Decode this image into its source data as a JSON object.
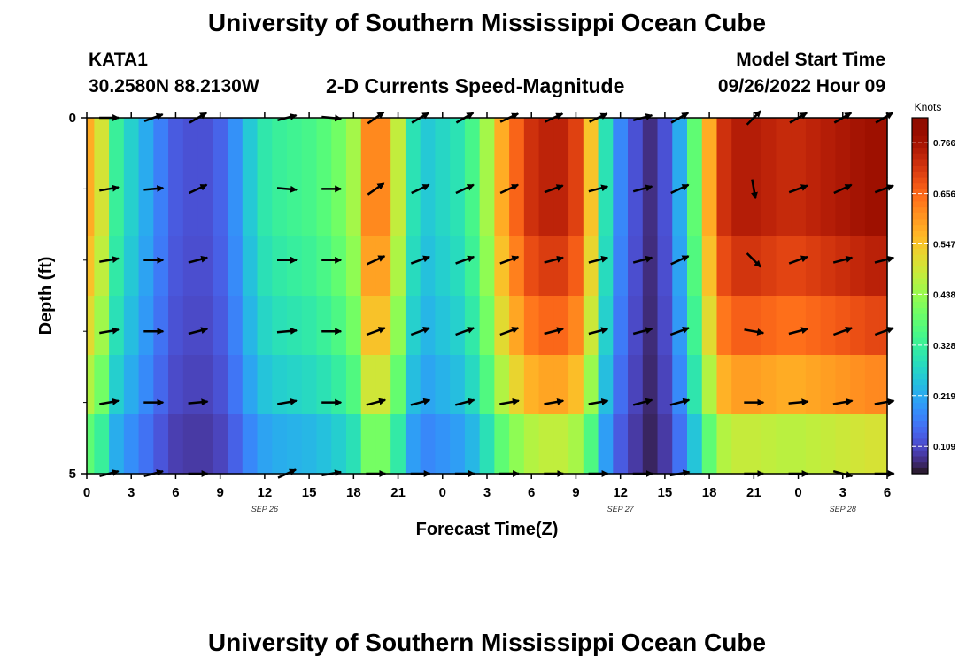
{
  "page": {
    "title": "University of Southern Mississippi Ocean Cube",
    "station": "KATA1",
    "coords": "30.2580N  88.2130W",
    "plot_title": "2-D Currents Speed-Magnitude",
    "model_start_label": "Model Start Time",
    "model_start_value": "09/26/2022 Hour 09",
    "footer_title": "University of Southern Mississippi Ocean Cube"
  },
  "chart_data": {
    "type": "heatmap",
    "title": "2-D Currents Speed-Magnitude",
    "xlabel": "Forecast Time(Z)",
    "ylabel": "Depth (ft)",
    "x_range_hours": [
      0,
      54
    ],
    "y_range": [
      0,
      5
    ],
    "y_ticks": [
      "0",
      "5"
    ],
    "x_tick_hours": [
      0,
      3,
      6,
      9,
      12,
      15,
      18,
      21,
      24,
      27,
      30,
      33,
      36,
      39,
      42,
      45,
      48,
      51,
      54
    ],
    "x_tick_labels": [
      "0",
      "3",
      "6",
      "9",
      "12",
      "15",
      "18",
      "21",
      "0",
      "3",
      "6",
      "9",
      "12",
      "15",
      "18",
      "21",
      "0",
      "3",
      "6"
    ],
    "date_labels": [
      {
        "hour": 12,
        "text": "SEP 26"
      },
      {
        "hour": 36,
        "text": "SEP 27"
      },
      {
        "hour": 51,
        "text": "SEP 28"
      }
    ],
    "colorbar": {
      "unit": "Knots",
      "min": 0.05,
      "max": 0.82,
      "ticks": [
        0.109,
        0.219,
        0.328,
        0.438,
        0.547,
        0.656,
        0.766
      ],
      "tick_labels": [
        "0.109",
        "0.219",
        "0.328",
        "0.438",
        "0.547",
        "0.656",
        "0.766"
      ]
    },
    "speed_profile_hours": [
      0,
      1,
      2,
      3,
      4,
      5,
      6,
      7,
      8,
      9,
      10,
      11,
      12,
      13,
      14,
      15,
      16,
      17,
      18,
      19,
      20,
      21,
      22,
      23,
      24,
      25,
      26,
      27,
      28,
      29,
      30,
      31,
      32,
      33,
      34,
      35,
      36,
      37,
      38,
      39,
      40,
      41,
      42,
      43,
      44,
      45,
      46,
      47,
      48,
      49,
      50,
      51,
      52,
      53,
      54
    ],
    "speed_profile_knots": [
      0.58,
      0.5,
      0.33,
      0.27,
      0.22,
      0.17,
      0.13,
      0.12,
      0.12,
      0.14,
      0.19,
      0.26,
      0.31,
      0.33,
      0.34,
      0.35,
      0.37,
      0.4,
      0.45,
      0.62,
      0.62,
      0.48,
      0.3,
      0.26,
      0.28,
      0.3,
      0.35,
      0.45,
      0.58,
      0.66,
      0.72,
      0.74,
      0.74,
      0.7,
      0.55,
      0.3,
      0.18,
      0.12,
      0.08,
      0.12,
      0.22,
      0.38,
      0.58,
      0.72,
      0.75,
      0.75,
      0.74,
      0.73,
      0.73,
      0.74,
      0.75,
      0.76,
      0.77,
      0.78,
      0.78
    ],
    "depth_levels_factor": [
      1.0,
      1.0,
      0.95,
      0.88,
      0.78,
      0.62
    ],
    "vector_rows_depth": [
      0,
      1,
      2,
      3,
      4,
      5
    ],
    "vector_cols_hours": [
      1.5,
      4.5,
      7.5,
      13.5,
      16.5,
      19.5,
      22.5,
      25.5,
      28.5,
      31.5,
      34.5,
      37.5,
      40,
      45,
      48,
      51,
      53.8
    ],
    "vector_angles_deg": [
      [
        0,
        -20,
        -30,
        -15,
        5,
        -35,
        -30,
        -30,
        -25,
        -25,
        -25,
        -15,
        -30,
        -45,
        -30,
        -30,
        -30
      ],
      [
        -10,
        -5,
        -25,
        5,
        0,
        -35,
        -25,
        -25,
        -25,
        -20,
        -15,
        -15,
        -25,
        80,
        -20,
        -25,
        -20
      ],
      [
        -10,
        0,
        -15,
        0,
        0,
        -25,
        -20,
        -20,
        -20,
        -15,
        -15,
        -15,
        -25,
        45,
        -20,
        -15,
        -15
      ],
      [
        -10,
        0,
        -15,
        -5,
        0,
        -20,
        -20,
        -20,
        -20,
        -15,
        -15,
        -15,
        -20,
        10,
        -15,
        -20,
        -20
      ],
      [
        -10,
        0,
        -5,
        -10,
        0,
        -15,
        -15,
        -15,
        -10,
        -10,
        -10,
        -15,
        -15,
        0,
        -5,
        -10,
        -10
      ],
      [
        -15,
        -15,
        0,
        -25,
        -10,
        0,
        0,
        0,
        0,
        0,
        0,
        0,
        -10,
        0,
        0,
        15,
        0
      ]
    ]
  }
}
